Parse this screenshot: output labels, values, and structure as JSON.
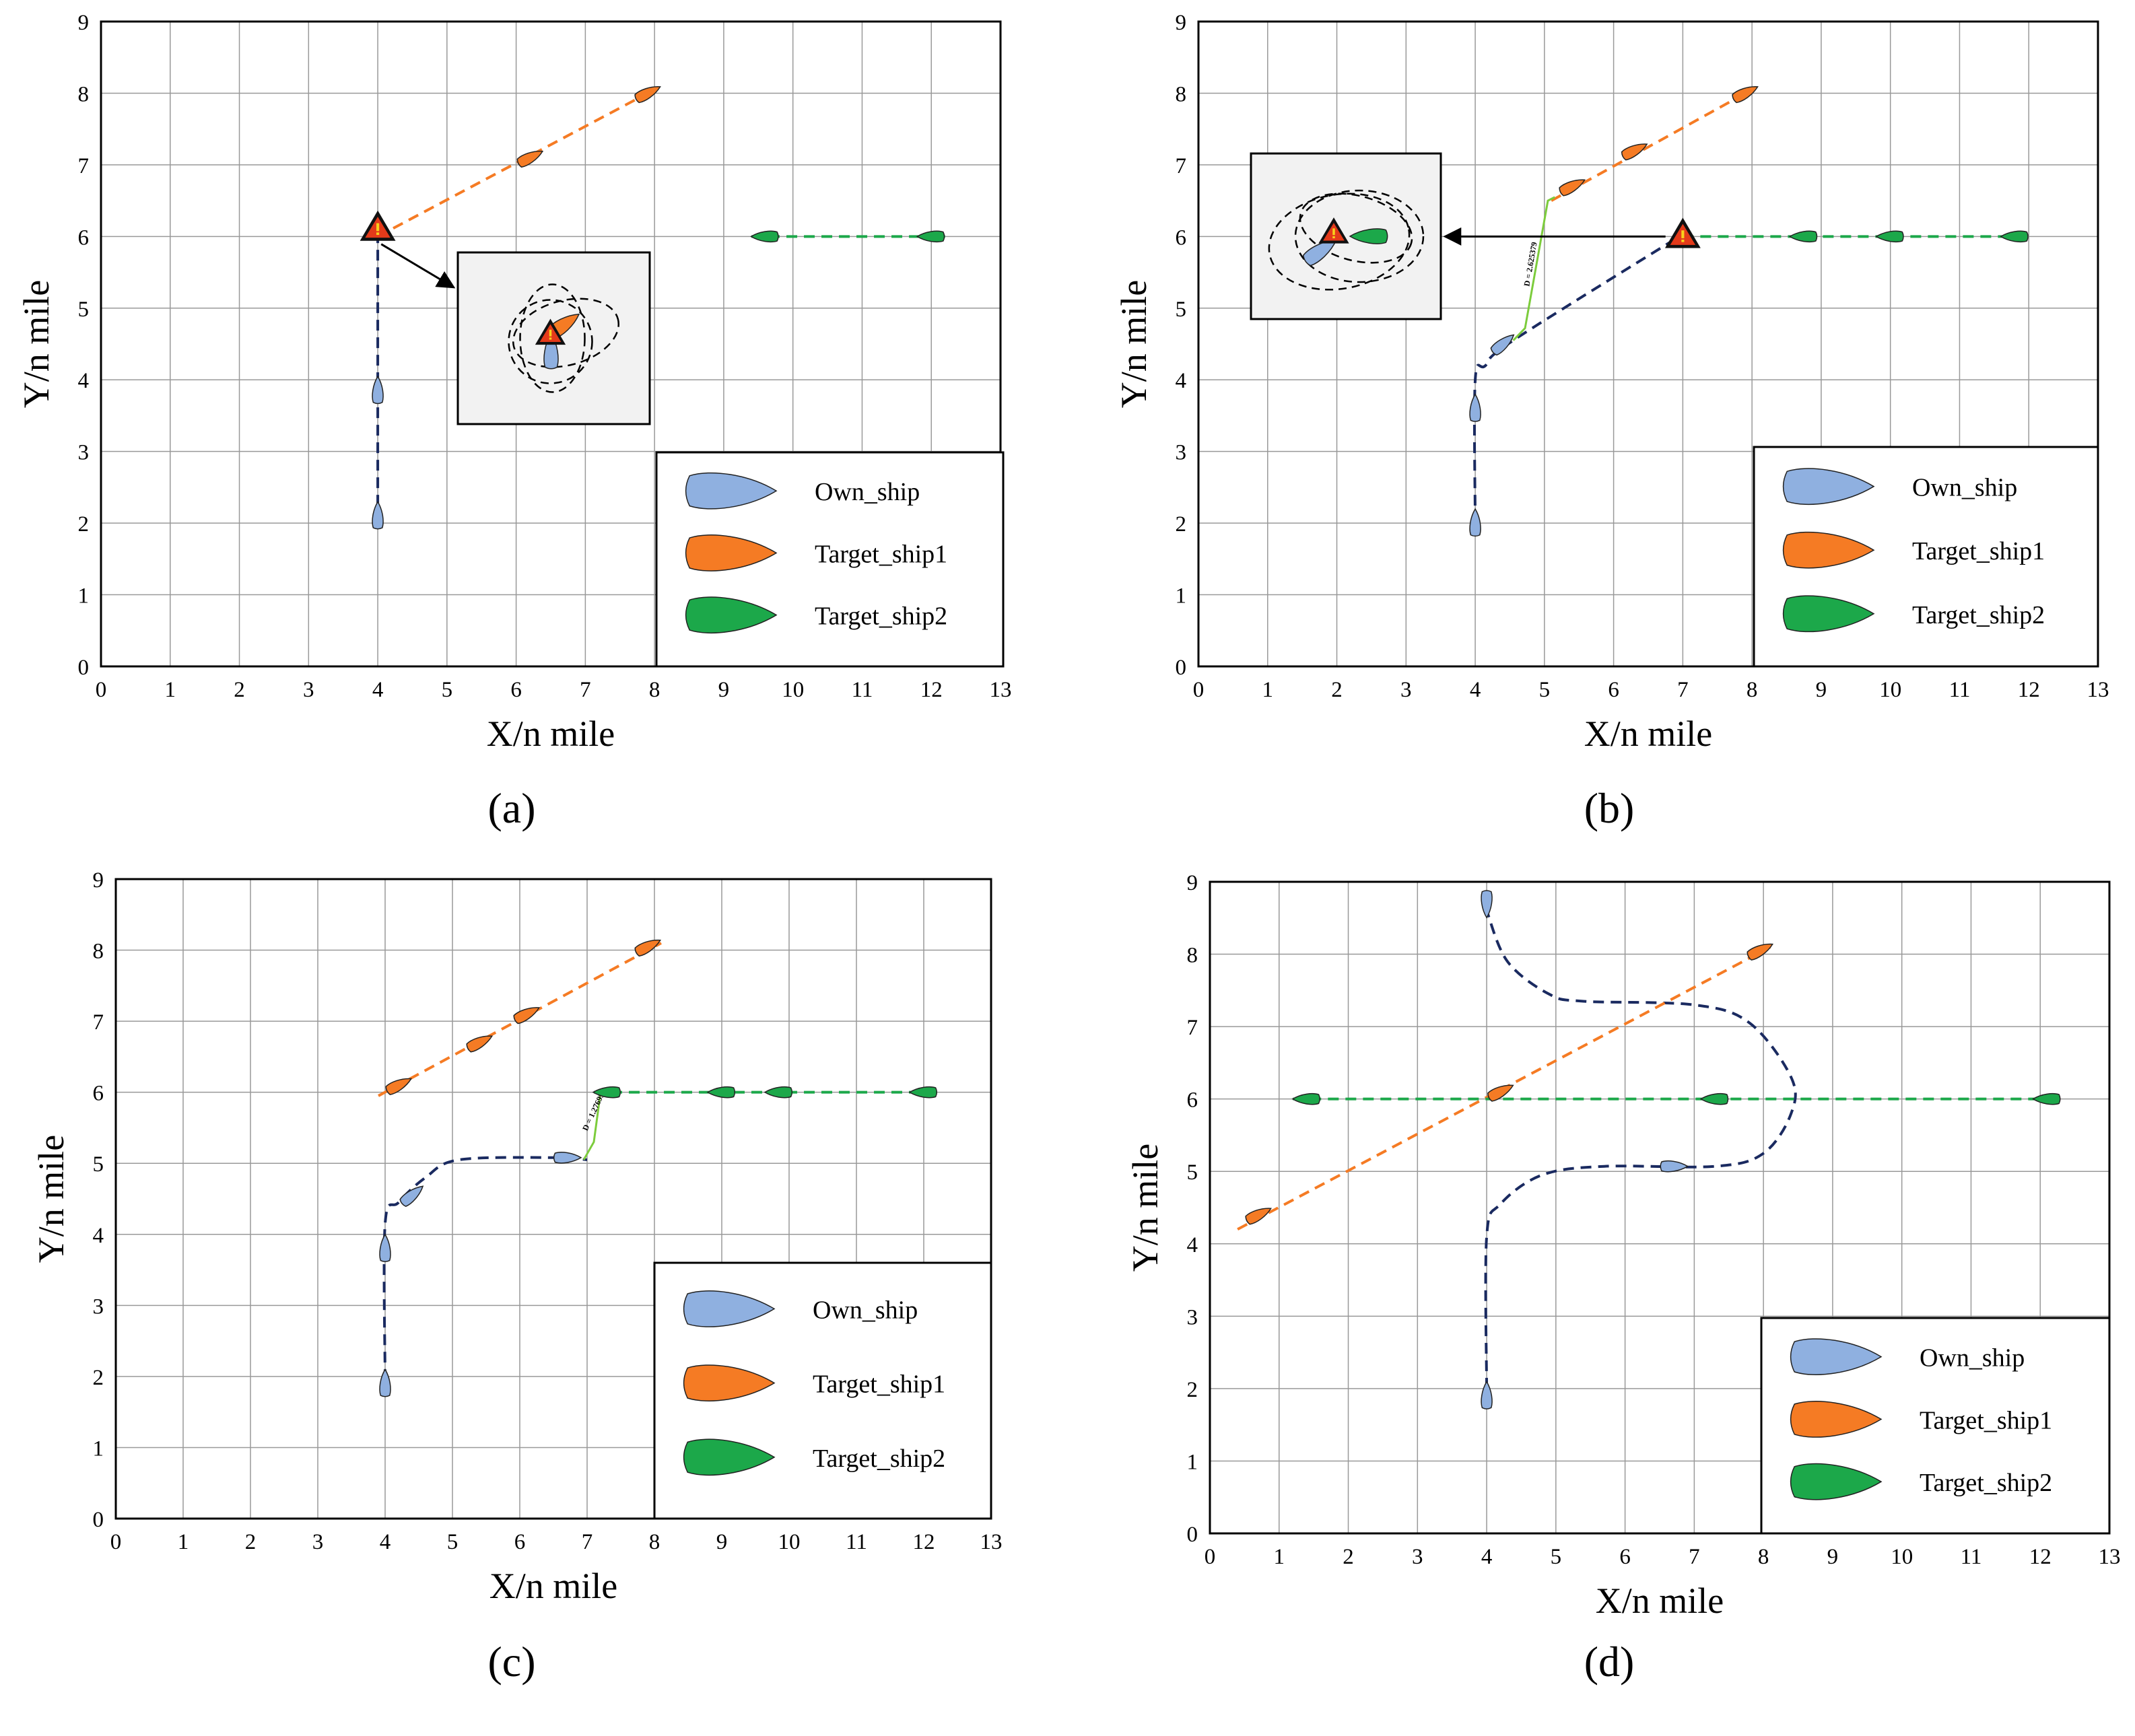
{
  "figure": {
    "panels": [
      "(a)",
      "(b)",
      "(c)",
      "(d)"
    ]
  },
  "colors": {
    "own_ship": "#8fb0e0",
    "target_ship1": "#f57b24",
    "target_ship2": "#1ca84a",
    "own_track": "#1a2a60",
    "target1_track": "#f57b24",
    "target2_track": "#1ca84a",
    "grid": "#999999",
    "warning_fill": "#e43a1a",
    "warning_mark": "#f7d21c",
    "green_link": "#7ccc3c"
  },
  "icons": {
    "warning": "warning-triangle-icon",
    "ship": "ship-hull-icon"
  },
  "chart_data": [
    {
      "panel": "(a)",
      "type": "scatter",
      "xlabel": "X/n mile",
      "ylabel": "Y/n mile",
      "xlim": [
        0,
        13
      ],
      "ylim": [
        0,
        9
      ],
      "xticks": [
        "0",
        "1",
        "2",
        "3",
        "4",
        "5",
        "6",
        "7",
        "8",
        "9",
        "10",
        "11",
        "12",
        "13"
      ],
      "yticks": [
        "0",
        "1",
        "2",
        "3",
        "4",
        "5",
        "6",
        "7",
        "8",
        "9"
      ],
      "grid": true,
      "legend_position": "bottom-right",
      "legend": [
        "Own_ship",
        "Target_ship1",
        "Target_ship2"
      ],
      "series": [
        {
          "name": "Own_ship",
          "track": [
            [
              4,
              2
            ],
            [
              4,
              6
            ]
          ],
          "ships": [
            [
              4,
              2.1,
              90
            ],
            [
              4,
              3.85,
              90
            ]
          ]
        },
        {
          "name": "Target_ship1",
          "track": [
            [
              4,
              6
            ],
            [
              8,
              8.05
            ]
          ],
          "ships": [
            [
              6.2,
              7.1,
              27
            ],
            [
              7.9,
              8.0,
              27
            ]
          ]
        },
        {
          "name": "Target_ship2",
          "track": [
            [
              9.4,
              6
            ],
            [
              12.2,
              6
            ]
          ],
          "ships": [
            [
              9.6,
              6.0,
              180
            ],
            [
              12.0,
              6.0,
              180
            ]
          ]
        }
      ],
      "annotations": [
        {
          "type": "warning",
          "at": [
            4,
            6.1
          ]
        },
        {
          "type": "inset",
          "from": [
            4,
            6.1
          ]
        }
      ]
    },
    {
      "panel": "(b)",
      "type": "scatter",
      "xlabel": "X/n mile",
      "ylabel": "Y/n mile",
      "xlim": [
        0,
        13
      ],
      "ylim": [
        0,
        9
      ],
      "xticks": [
        "0",
        "1",
        "2",
        "3",
        "4",
        "5",
        "6",
        "7",
        "8",
        "9",
        "10",
        "11",
        "12",
        "13"
      ],
      "yticks": [
        "0",
        "1",
        "2",
        "3",
        "4",
        "5",
        "6",
        "7",
        "8",
        "9"
      ],
      "grid": true,
      "legend_position": "bottom-right",
      "legend": [
        "Own_ship",
        "Target_ship1",
        "Target_ship2"
      ],
      "series": [
        {
          "name": "Own_ship",
          "track": [
            [
              4,
              2
            ],
            [
              4,
              4.0
            ],
            [
              4.15,
              4.2
            ],
            [
              4.55,
              4.55
            ],
            [
              6.95,
              6.0
            ]
          ],
          "ships": [
            [
              4,
              2.0,
              90
            ],
            [
              4,
              3.6,
              90
            ],
            [
              4.4,
              4.5,
              40
            ]
          ]
        },
        {
          "name": "Target_ship1",
          "track": [
            [
              5.1,
              6.5
            ],
            [
              8,
              8.05
            ]
          ],
          "ships": [
            [
              5.4,
              6.7,
              27
            ],
            [
              6.3,
              7.2,
              27
            ],
            [
              7.9,
              8.0,
              27
            ]
          ]
        },
        {
          "name": "Target_ship2",
          "track": [
            [
              7.0,
              6
            ],
            [
              12.0,
              6
            ]
          ],
          "ships": [
            [
              8.75,
              6.0,
              180
            ],
            [
              10.0,
              6.0,
              180
            ],
            [
              11.8,
              6.0,
              180
            ]
          ]
        }
      ],
      "distance_label": "D = 2.625379",
      "annotations": [
        {
          "type": "warning",
          "at": [
            7,
            6.0
          ]
        },
        {
          "type": "inset",
          "from": [
            7,
            6.0
          ]
        }
      ]
    },
    {
      "panel": "(c)",
      "type": "scatter",
      "xlabel": "X/n mile",
      "ylabel": "Y/n mile",
      "xlim": [
        0,
        13
      ],
      "ylim": [
        0,
        9
      ],
      "xticks": [
        "0",
        "1",
        "2",
        "3",
        "4",
        "5",
        "6",
        "7",
        "8",
        "9",
        "10",
        "11",
        "12",
        "13"
      ],
      "yticks": [
        "0",
        "1",
        "2",
        "3",
        "4",
        "5",
        "6",
        "7",
        "8",
        "9"
      ],
      "grid": true,
      "legend_position": "bottom-right",
      "legend": [
        "Own_ship",
        "Target_ship1",
        "Target_ship2"
      ],
      "series": [
        {
          "name": "Own_ship",
          "track": [
            [
              4,
              1.95
            ],
            [
              4,
              4.15
            ],
            [
              4.2,
              4.45
            ],
            [
              4.6,
              4.8
            ],
            [
              5.1,
              5.05
            ],
            [
              6.5,
              5.08
            ],
            [
              7.0,
              5.05
            ]
          ],
          "ships": [
            [
              4,
              1.9,
              90
            ],
            [
              4,
              3.8,
              90
            ],
            [
              4.4,
              4.55,
              40
            ],
            [
              6.7,
              5.08,
              0
            ]
          ]
        },
        {
          "name": "Target_ship1",
          "track": [
            [
              3.9,
              5.95
            ],
            [
              8.1,
              8.1
            ]
          ],
          "ships": [
            [
              4.2,
              6.1,
              27
            ],
            [
              5.4,
              6.7,
              27
            ],
            [
              6.1,
              7.1,
              27
            ],
            [
              7.9,
              8.05,
              27
            ]
          ]
        },
        {
          "name": "Target_ship2",
          "track": [
            [
              7.1,
              6
            ],
            [
              12.2,
              6
            ]
          ],
          "ships": [
            [
              7.3,
              6.0,
              180
            ],
            [
              9.0,
              6.0,
              180
            ],
            [
              9.85,
              6.0,
              180
            ],
            [
              12.0,
              6.0,
              180
            ]
          ]
        }
      ],
      "distance_label": "D = 1.27695",
      "annotations": []
    },
    {
      "panel": "(d)",
      "type": "scatter",
      "xlabel": "X/n mile",
      "ylabel": "Y/n mile",
      "xlim": [
        0,
        13
      ],
      "ylim": [
        0,
        9
      ],
      "xticks": [
        "0",
        "1",
        "2",
        "3",
        "4",
        "5",
        "6",
        "7",
        "8",
        "9",
        "10",
        "11",
        "12",
        "13"
      ],
      "yticks": [
        "0",
        "1",
        "2",
        "3",
        "4",
        "5",
        "6",
        "7",
        "8",
        "9"
      ],
      "grid": true,
      "legend_position": "bottom-right",
      "legend": [
        "Own_ship",
        "Target_ship1",
        "Target_ship2"
      ],
      "series": [
        {
          "name": "Own_ship",
          "track": [
            [
              4,
              2.0
            ],
            [
              4,
              4.1
            ],
            [
              4.2,
              4.55
            ],
            [
              4.8,
              4.95
            ],
            [
              5.7,
              5.07
            ],
            [
              7.3,
              5.07
            ],
            [
              8.0,
              5.25
            ],
            [
              8.4,
              5.8
            ],
            [
              8.4,
              6.3
            ],
            [
              7.8,
              7.05
            ],
            [
              7.0,
              7.3
            ],
            [
              5.4,
              7.35
            ],
            [
              4.9,
              7.45
            ],
            [
              4.3,
              7.9
            ],
            [
              4.0,
              8.6
            ]
          ],
          "ships": [
            [
              4,
              1.9,
              90
            ],
            [
              4,
              8.7,
              -90
            ],
            [
              6.7,
              5.07,
              0
            ]
          ]
        },
        {
          "name": "Target_ship1",
          "track": [
            [
              0.4,
              4.2
            ],
            [
              8.1,
              8.1
            ]
          ],
          "ships": [
            [
              0.7,
              4.4,
              27
            ],
            [
              4.2,
              6.1,
              27
            ],
            [
              7.95,
              8.05,
              27
            ]
          ]
        },
        {
          "name": "Target_ship2",
          "track": [
            [
              1.2,
              6
            ],
            [
              12.3,
              6
            ]
          ],
          "ships": [
            [
              1.4,
              6.0,
              180
            ],
            [
              7.3,
              6.0,
              180
            ],
            [
              12.1,
              6.0,
              180
            ]
          ]
        }
      ],
      "annotations": []
    }
  ]
}
